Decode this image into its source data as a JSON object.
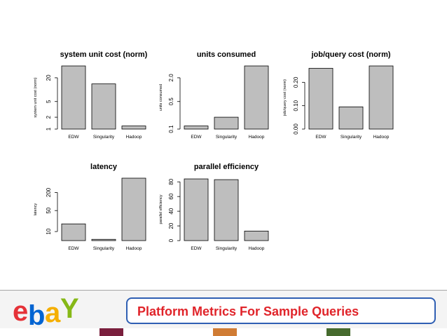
{
  "chart_data": [
    {
      "type": "bar",
      "title": "system unit cost (norm)",
      "ylabel": "system unit cost (norm)",
      "scale": "log",
      "categories": [
        "EDW",
        "Singularity",
        "Hadoop"
      ],
      "values": [
        40,
        14,
        1.2
      ],
      "ylim": [
        1,
        40
      ],
      "yticks": [
        1,
        2,
        5,
        20
      ]
    },
    {
      "type": "bar",
      "title": "units consumed",
      "ylabel": "units consumed",
      "scale": "log",
      "categories": [
        "EDW",
        "Singularity",
        "Hadoop"
      ],
      "values": [
        0.12,
        0.2,
        4
      ],
      "ylim": [
        0.1,
        4
      ],
      "yticks": [
        0.1,
        0.5,
        2.0
      ],
      "yticklabels": [
        "0.1",
        "0.5",
        "2.0"
      ]
    },
    {
      "type": "bar",
      "title": "job/query cost (norm)",
      "ylabel": "job/query cost (norm)",
      "scale": "linear",
      "categories": [
        "EDW",
        "Singularity",
        "Hadoop"
      ],
      "values": [
        0.26,
        0.095,
        0.27
      ],
      "ylim": [
        0,
        0.27
      ],
      "yticks": [
        0,
        0.1,
        0.2
      ],
      "yticklabels": [
        "0.00",
        "0.10",
        "0.20"
      ]
    },
    {
      "type": "bar",
      "title": "latency",
      "ylabel": "latency",
      "scale": "log",
      "categories": [
        "EDW",
        "Singularity",
        "Hadoop"
      ],
      "values": [
        18,
        5.5,
        600
      ],
      "ylim": [
        5,
        600
      ],
      "yticks": [
        10,
        50,
        200
      ],
      "yticklabels": [
        "10",
        "50",
        "200"
      ]
    },
    {
      "type": "bar",
      "title": "parallel efficiency",
      "ylabel": "parallel efficiency",
      "scale": "linear",
      "categories": [
        "EDW",
        "Singularity",
        "Hadoop"
      ],
      "values": [
        84,
        83,
        13
      ],
      "ylim": [
        0,
        85
      ],
      "yticks": [
        0,
        20,
        40,
        60,
        80
      ],
      "yticklabels": [
        "0",
        "20",
        "40",
        "60",
        "80"
      ]
    }
  ],
  "footer": {
    "title": "Platform Metrics For Sample Queries",
    "logo": {
      "letters": [
        "e",
        "b",
        "a",
        "Y"
      ],
      "colors": [
        "#e53238",
        "#0064d2",
        "#f5af02",
        "#86b817"
      ]
    }
  },
  "colors": {
    "bar": "#bebebe",
    "bar_edge": "#000000",
    "title_text": "#e0242a",
    "title_border": "#2f5fb3"
  },
  "colorbar": [
    "#ffffff",
    "#7a1f3d",
    "#ffffff",
    "#d07c34",
    "#ffffff",
    "#466b2e",
    "#ffffff"
  ]
}
